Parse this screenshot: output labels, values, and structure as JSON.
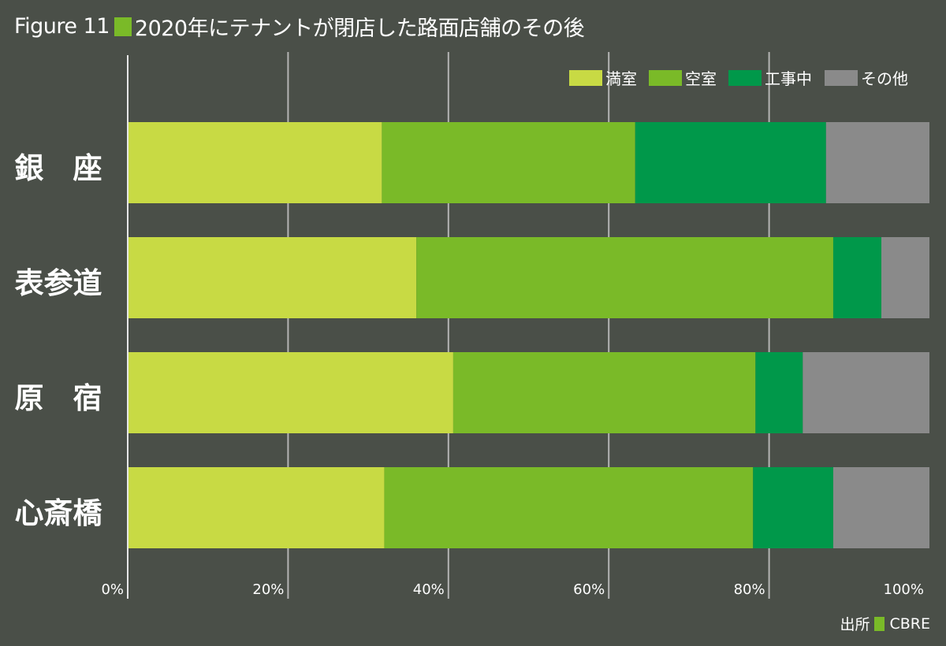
{
  "chart_data": {
    "type": "bar",
    "orientation": "horizontal",
    "stacked": true,
    "figure_label": "Figure 11",
    "title": "2020年にテナントが閉店した路面店舗のその後",
    "categories": [
      "銀　座",
      "表参道",
      "原　宿",
      "心斎橋"
    ],
    "series": [
      {
        "name": "満室",
        "color": "#c8da44",
        "values": [
          31.7,
          36.0,
          40.6,
          32.0
        ]
      },
      {
        "name": "空室",
        "color": "#7aba28",
        "values": [
          31.6,
          52.0,
          37.7,
          46.0
        ]
      },
      {
        "name": "工事中",
        "color": "#00984a",
        "values": [
          23.8,
          6.0,
          5.9,
          10.0
        ]
      },
      {
        "name": "その他",
        "color": "#8a8a8a",
        "values": [
          12.9,
          6.0,
          15.8,
          12.0
        ]
      }
    ],
    "xlim": [
      0,
      100
    ],
    "xticks": [
      0,
      20,
      40,
      60,
      80,
      100
    ],
    "xtick_labels": [
      "0%",
      "20%",
      "40%",
      "60%",
      "80%",
      "100%"
    ],
    "xlabel": "",
    "ylabel": "",
    "grid": true,
    "legend_position": "top-right",
    "source": {
      "label": "出所",
      "value": "CBRE"
    }
  },
  "colors": {
    "background": "#4a4f48",
    "title_square": "#7aba28",
    "gridline": "#b4b4b4"
  }
}
